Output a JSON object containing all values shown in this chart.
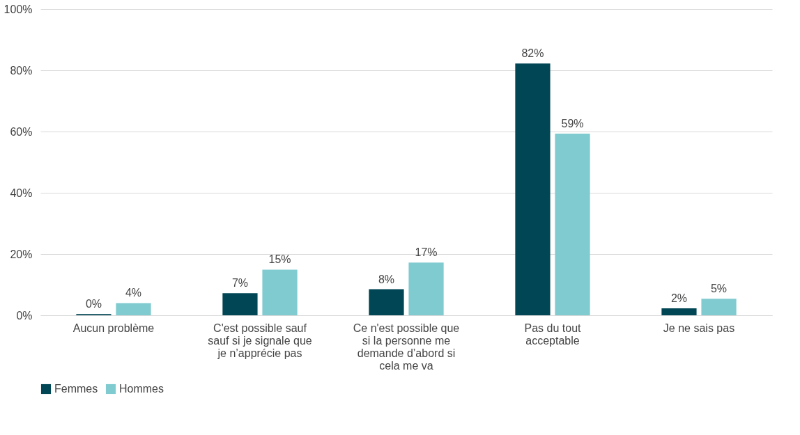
{
  "chart_data": {
    "type": "bar",
    "categories": [
      "Aucun problème",
      "C'est possible sauf\nsauf si je signale que\nje n’apprécie pas",
      "Ce n'est possible que\nsi la personne me\ndemande d’abord si\ncela me va",
      "Pas du tout\nacceptable",
      "Je ne sais pas"
    ],
    "series": [
      {
        "name": "Femmes",
        "color": "#004654",
        "values": [
          0.4,
          7.2,
          8.5,
          82.2,
          2.3
        ],
        "value_labels": [
          "0%",
          "7%",
          "8%",
          "82%",
          "2%"
        ]
      },
      {
        "name": "Hommes",
        "color": "#80cbd0",
        "values": [
          4.0,
          14.9,
          17.2,
          59.3,
          5.4
        ],
        "value_labels": [
          "4%",
          "15%",
          "17%",
          "59%",
          "5%"
        ]
      }
    ],
    "ylim": [
      0,
      100
    ],
    "yticks": [
      {
        "value": 0,
        "label": "0%"
      },
      {
        "value": 20,
        "label": "20%"
      },
      {
        "value": 40,
        "label": "40%"
      },
      {
        "value": 60,
        "label": "60%"
      },
      {
        "value": 80,
        "label": "80%"
      },
      {
        "value": 100,
        "label": "100%"
      }
    ],
    "grid": "y",
    "legend": "bottom"
  }
}
